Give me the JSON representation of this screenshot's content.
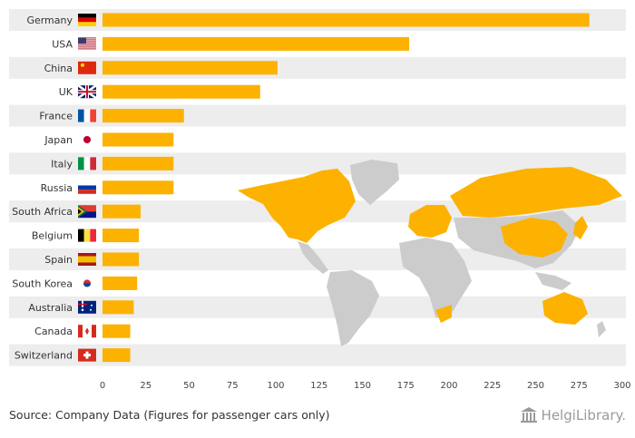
{
  "chart_data": {
    "type": "bar",
    "orientation": "horizontal",
    "categories": [
      "Germany",
      "USA",
      "China",
      "UK",
      "France",
      "Japan",
      "Italy",
      "Russia",
      "South Africa",
      "Belgium",
      "Spain",
      "South Korea",
      "Australia",
      "Canada",
      "Switzerland"
    ],
    "values": [
      281,
      177,
      101,
      91,
      47,
      41,
      41,
      41,
      22,
      21,
      21,
      20,
      18,
      16,
      16
    ],
    "xlim": [
      0,
      300
    ],
    "xticks": [
      0,
      25,
      50,
      75,
      100,
      125,
      150,
      175,
      200,
      225,
      250,
      275,
      300
    ],
    "xlabel": "",
    "ylabel": "",
    "bar_color": "#FDB100",
    "title": ""
  },
  "footer": {
    "source": "Source: Company Data (Figures for passenger cars only)",
    "logo_text": "HelgiLibrary."
  },
  "colors": {
    "stripe": "#EDEDED",
    "map_highlight": "#FDB100",
    "map_base": "#CCCCCC"
  }
}
